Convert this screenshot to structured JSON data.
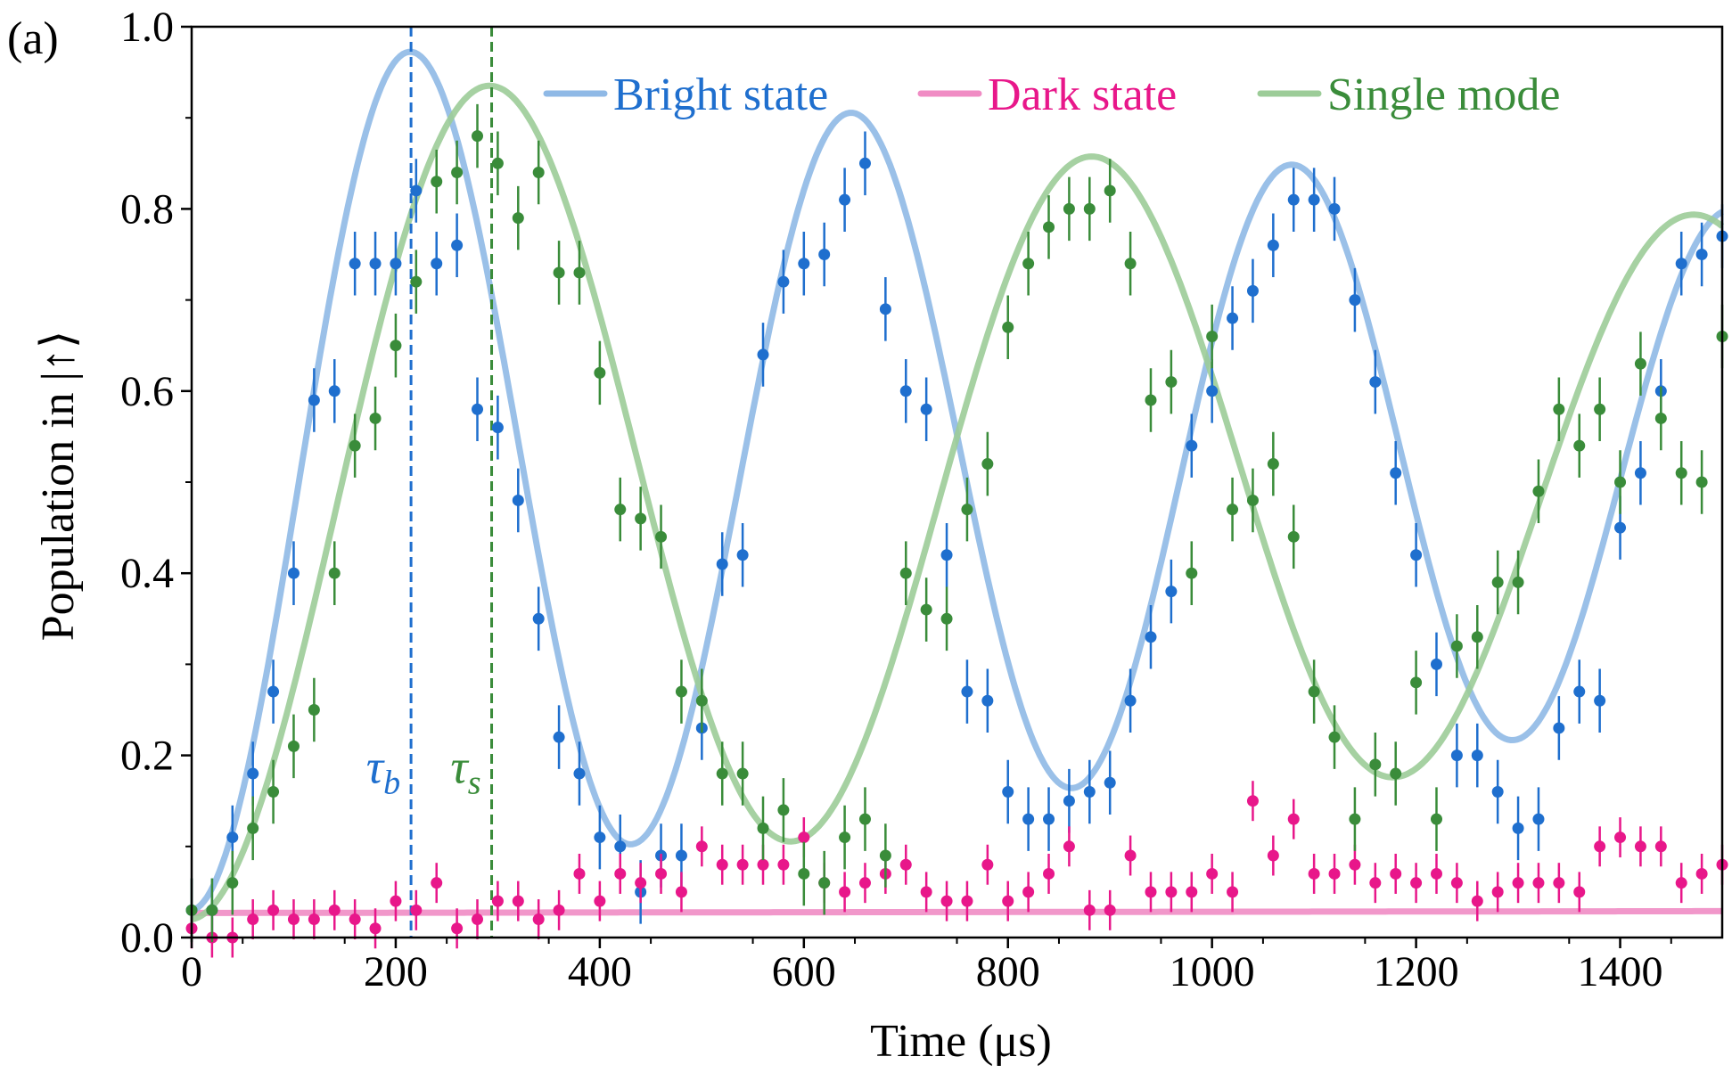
{
  "panel_label": "(a)",
  "chart_data": {
    "type": "scatter",
    "xlabel": "Time (μs)",
    "ylabel": "Population in |↑⟩",
    "xlim": [
      0,
      1500
    ],
    "ylim": [
      0,
      1.0
    ],
    "x_ticks": [
      0,
      200,
      400,
      600,
      800,
      1000,
      1200,
      1400
    ],
    "x_tick_labels": [
      "0",
      "200",
      "400",
      "600",
      "800",
      "1000",
      "1200",
      "1400"
    ],
    "y_ticks": [
      0.0,
      0.2,
      0.4,
      0.6,
      0.8,
      1.0
    ],
    "y_tick_labels": [
      "0.0",
      "0.2",
      "0.4",
      "0.6",
      "0.8",
      "1.0"
    ],
    "grid": false,
    "legend_position": "top-right",
    "vlines": [
      {
        "name": "tau-b",
        "x": 215,
        "label": "τ",
        "sub": "b",
        "color": "#1f6fce"
      },
      {
        "name": "tau-s",
        "x": 294,
        "label": "τ",
        "sub": "s",
        "color": "#3a8c3a"
      }
    ],
    "series": [
      {
        "name": "Bright state",
        "fit_color": "#8fb9e6",
        "point_color": "#1f6fce",
        "fit": {
          "model": "damped_cosine",
          "offset": 0.52,
          "amp0": 0.49,
          "decay_us": 2700,
          "period_us": 432,
          "phase_rad": 0
        },
        "x": [
          0,
          20,
          40,
          60,
          80,
          100,
          120,
          140,
          160,
          180,
          200,
          220,
          240,
          260,
          280,
          300,
          320,
          340,
          360,
          380,
          400,
          420,
          440,
          460,
          480,
          500,
          520,
          540,
          560,
          580,
          600,
          620,
          640,
          660,
          680,
          700,
          720,
          740,
          760,
          780,
          800,
          820,
          840,
          860,
          880,
          900,
          920,
          940,
          960,
          980,
          1000,
          1020,
          1040,
          1060,
          1080,
          1100,
          1120,
          1140,
          1160,
          1180,
          1200,
          1220,
          1240,
          1260,
          1280,
          1300,
          1320,
          1340,
          1360,
          1380,
          1400,
          1420,
          1440,
          1460,
          1480,
          1500
        ],
        "y": [
          0.03,
          0.03,
          0.11,
          0.18,
          0.27,
          0.4,
          0.59,
          0.6,
          0.74,
          0.74,
          0.74,
          0.82,
          0.74,
          0.76,
          0.58,
          0.56,
          0.48,
          0.35,
          0.22,
          0.18,
          0.11,
          0.1,
          0.05,
          0.09,
          0.09,
          0.23,
          0.41,
          0.42,
          0.64,
          0.72,
          0.74,
          0.75,
          0.81,
          0.85,
          0.69,
          0.6,
          0.58,
          0.42,
          0.27,
          0.26,
          0.16,
          0.13,
          0.13,
          0.15,
          0.16,
          0.17,
          0.26,
          0.33,
          0.38,
          0.54,
          0.6,
          0.68,
          0.71,
          0.76,
          0.81,
          0.81,
          0.8,
          0.7,
          0.61,
          0.51,
          0.42,
          0.3,
          0.2,
          0.2,
          0.16,
          0.12,
          0.13,
          0.23,
          0.27,
          0.26,
          0.45,
          0.51,
          0.6,
          0.74,
          0.75,
          0.77
        ],
        "err": 0.035
      },
      {
        "name": "Dark state",
        "fit_color": "#f08cc4",
        "point_color": "#e8178a",
        "fit": {
          "model": "linear",
          "y0": 0.027,
          "slope_per_us": 1.3e-06
        },
        "x": [
          0,
          20,
          40,
          60,
          80,
          100,
          120,
          140,
          160,
          180,
          200,
          220,
          240,
          260,
          280,
          300,
          320,
          340,
          360,
          380,
          400,
          420,
          440,
          460,
          480,
          500,
          520,
          540,
          560,
          580,
          600,
          620,
          640,
          660,
          680,
          700,
          720,
          740,
          760,
          780,
          800,
          820,
          840,
          860,
          880,
          900,
          920,
          940,
          960,
          980,
          1000,
          1020,
          1040,
          1060,
          1080,
          1100,
          1120,
          1140,
          1160,
          1180,
          1200,
          1220,
          1240,
          1260,
          1280,
          1300,
          1320,
          1340,
          1360,
          1380,
          1400,
          1420,
          1440,
          1460,
          1480,
          1500
        ],
        "y": [
          0.01,
          0.0,
          0.0,
          0.02,
          0.03,
          0.02,
          0.02,
          0.03,
          0.02,
          0.01,
          0.04,
          0.03,
          0.06,
          0.01,
          0.02,
          0.04,
          0.04,
          0.02,
          0.03,
          0.07,
          0.04,
          0.07,
          0.06,
          0.07,
          0.05,
          0.1,
          0.08,
          0.08,
          0.08,
          0.08,
          0.11,
          0.06,
          0.05,
          0.06,
          0.07,
          0.08,
          0.05,
          0.04,
          0.04,
          0.08,
          0.04,
          0.05,
          0.07,
          0.1,
          0.03,
          0.03,
          0.09,
          0.05,
          0.05,
          0.05,
          0.07,
          0.05,
          0.15,
          0.09,
          0.13,
          0.07,
          0.07,
          0.08,
          0.06,
          0.07,
          0.06,
          0.07,
          0.06,
          0.04,
          0.05,
          0.06,
          0.06,
          0.06,
          0.05,
          0.1,
          0.11,
          0.1,
          0.1,
          0.06,
          0.07,
          0.08
        ],
        "err": 0.022
      },
      {
        "name": "Single mode",
        "fit_color": "#9ccc98",
        "point_color": "#3a8c3a",
        "fit": {
          "model": "damped_cosine",
          "offset": 0.5,
          "amp0": 0.48,
          "decay_us": 3000,
          "period_us": 590,
          "phase_rad": 0
        },
        "x": [
          0,
          20,
          40,
          60,
          80,
          100,
          120,
          140,
          160,
          180,
          200,
          220,
          240,
          260,
          280,
          300,
          320,
          340,
          360,
          380,
          400,
          420,
          440,
          460,
          480,
          500,
          520,
          540,
          560,
          580,
          600,
          620,
          640,
          660,
          680,
          700,
          720,
          740,
          760,
          780,
          800,
          820,
          840,
          860,
          880,
          900,
          920,
          940,
          960,
          980,
          1000,
          1020,
          1040,
          1060,
          1080,
          1100,
          1120,
          1140,
          1160,
          1180,
          1200,
          1220,
          1240,
          1260,
          1280,
          1300,
          1320,
          1340,
          1360,
          1380,
          1400,
          1420,
          1440,
          1460,
          1480,
          1500
        ],
        "y": [
          0.03,
          0.03,
          0.06,
          0.12,
          0.16,
          0.21,
          0.25,
          0.4,
          0.54,
          0.57,
          0.65,
          0.72,
          0.83,
          0.84,
          0.88,
          0.85,
          0.79,
          0.84,
          0.73,
          0.73,
          0.62,
          0.47,
          0.46,
          0.44,
          0.27,
          0.26,
          0.18,
          0.18,
          0.12,
          0.14,
          0.07,
          0.06,
          0.11,
          0.13,
          0.09,
          0.4,
          0.36,
          0.35,
          0.47,
          0.52,
          0.67,
          0.74,
          0.78,
          0.8,
          0.8,
          0.82,
          0.74,
          0.59,
          0.61,
          0.4,
          0.66,
          0.47,
          0.48,
          0.52,
          0.44,
          0.27,
          0.22,
          0.13,
          0.19,
          0.18,
          0.28,
          0.13,
          0.32,
          0.33,
          0.39,
          0.39,
          0.49,
          0.58,
          0.54,
          0.58,
          0.5,
          0.63,
          0.57,
          0.51,
          0.5,
          0.66
        ],
        "err": 0.035
      }
    ]
  }
}
